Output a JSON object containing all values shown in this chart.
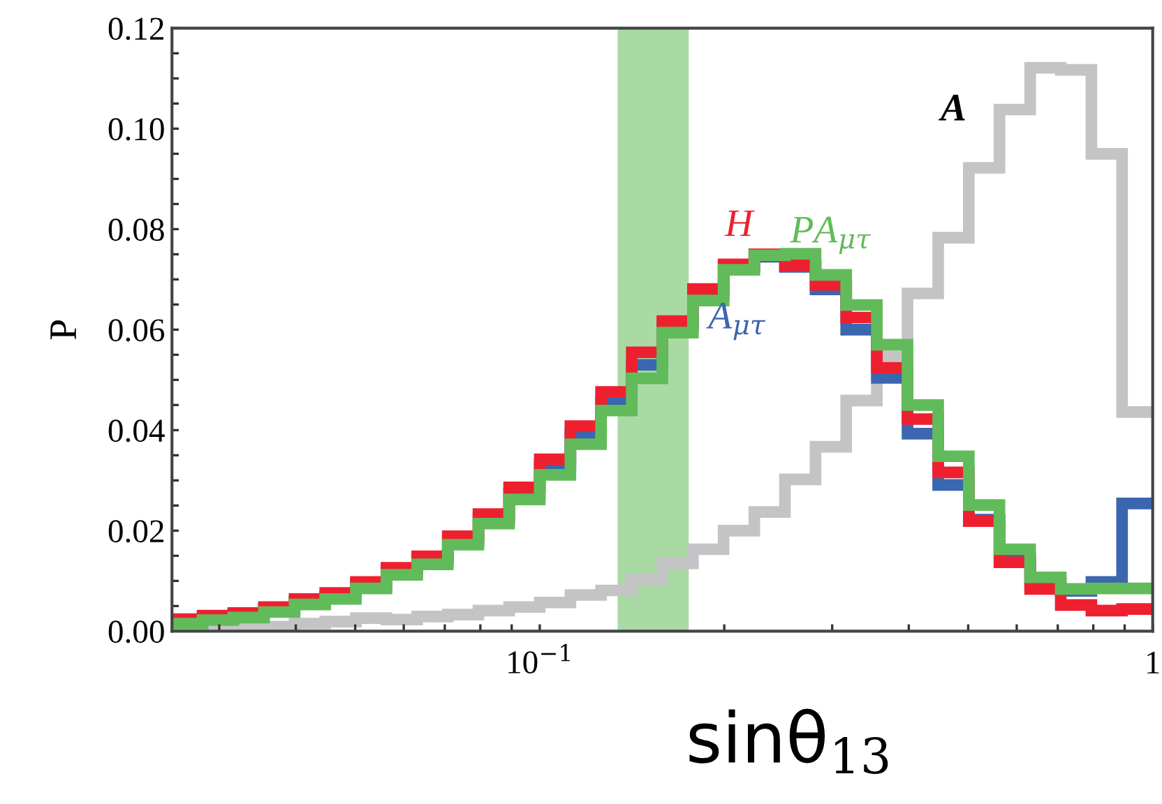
{
  "chart_data": {
    "type": "histogram",
    "xlabel": "sinθ$_{13}$",
    "ylabel": "P",
    "log": "x",
    "bins": [
      0.02512,
      0.02818,
      0.03162,
      0.03548,
      0.03981,
      0.04467,
      0.05012,
      0.05623,
      0.0631,
      0.07079,
      0.07943,
      0.08913,
      0.1,
      0.1122,
      0.1259,
      0.1413,
      0.1585,
      0.1778,
      0.1995,
      0.2239,
      0.2512,
      0.2818,
      0.3162,
      0.3548,
      0.3981,
      0.4467,
      0.5012,
      0.5623,
      0.631,
      0.7079,
      0.7943,
      0.8913,
      1
    ],
    "series": [
      {
        "name": "A",
        "color": "#c4c4c6",
        "values": [
          0.0003,
          0.0005,
          0.0007,
          0.0009,
          0.0015,
          0.0019,
          0.0026,
          0.0023,
          0.0029,
          0.0033,
          0.0041,
          0.0048,
          0.0057,
          0.0072,
          0.0081,
          0.0103,
          0.0135,
          0.0163,
          0.02,
          0.0237,
          0.0302,
          0.0367,
          0.0459,
          0.0547,
          0.0672,
          0.0783,
          0.0922,
          0.1038,
          0.1121,
          0.1117,
          0.095,
          0.0436
        ]
      },
      {
        "name": "A$_{μτ}$",
        "color": "#3b66b0",
        "values": [
          0.002,
          0.0026,
          0.0032,
          0.0043,
          0.0058,
          0.007,
          0.0092,
          0.0119,
          0.0141,
          0.0181,
          0.0224,
          0.0274,
          0.033,
          0.0392,
          0.0458,
          0.053,
          0.0606,
          0.0668,
          0.0725,
          0.0745,
          0.0725,
          0.068,
          0.06,
          0.0504,
          0.0393,
          0.0291,
          0.0222,
          0.0145,
          0.0095,
          0.008,
          0.0098,
          0.0254
        ]
      },
      {
        "name": "H",
        "color": "#ee2030",
        "values": [
          0.0024,
          0.0031,
          0.0036,
          0.0048,
          0.0064,
          0.0076,
          0.0098,
          0.0126,
          0.0149,
          0.0189,
          0.0233,
          0.0286,
          0.0342,
          0.0408,
          0.0476,
          0.0555,
          0.0617,
          0.0681,
          0.073,
          0.075,
          0.0728,
          0.0689,
          0.0624,
          0.0524,
          0.0422,
          0.0316,
          0.0219,
          0.0137,
          0.0084,
          0.0052,
          0.0041,
          0.0044
        ]
      },
      {
        "name": "PA$_{μτ}$",
        "color": "#62bb5a",
        "values": [
          0.0015,
          0.0022,
          0.0027,
          0.0038,
          0.0053,
          0.0064,
          0.0085,
          0.0112,
          0.0133,
          0.0172,
          0.0214,
          0.0262,
          0.0311,
          0.0372,
          0.0439,
          0.0503,
          0.0594,
          0.0658,
          0.0719,
          0.0748,
          0.0751,
          0.0709,
          0.0649,
          0.057,
          0.045,
          0.0348,
          0.0251,
          0.0163,
          0.0107,
          0.0084,
          0.0085,
          0.0085
        ]
      }
    ],
    "xlim": [
      0.02512,
      1
    ],
    "xticks": [
      {
        "value": 0.03,
        "label": null
      },
      {
        "value": 0.04,
        "label": null
      },
      {
        "value": 0.05,
        "label": null
      },
      {
        "value": 0.06,
        "label": null
      },
      {
        "value": 0.07,
        "label": null
      },
      {
        "value": 0.08,
        "label": null
      },
      {
        "value": 0.09,
        "label": null
      },
      {
        "value": 0.1,
        "label": "10$^{−1}$"
      },
      {
        "value": 0.2,
        "label": null
      },
      {
        "value": 0.3,
        "label": null
      },
      {
        "value": 0.4,
        "label": null
      },
      {
        "value": 0.5,
        "label": null
      },
      {
        "value": 0.6,
        "label": null
      },
      {
        "value": 0.7,
        "label": null
      },
      {
        "value": 0.8,
        "label": null
      },
      {
        "value": 0.9,
        "label": null
      },
      1
    ],
    "ylim": [
      0,
      0.12
    ],
    "yticks": [
      {
        "value": 0,
        "label": "0.00"
      },
      {
        "value": 0.005,
        "label": null
      },
      {
        "value": 0.01,
        "label": null
      },
      {
        "value": 0.015,
        "label": null
      },
      {
        "value": 0.02,
        "label": "0.02"
      },
      {
        "value": 0.025,
        "label": null
      },
      {
        "value": 0.03,
        "label": null
      },
      {
        "value": 0.035,
        "label": null
      },
      {
        "value": 0.04,
        "label": "0.04"
      },
      {
        "value": 0.045,
        "label": null
      },
      {
        "value": 0.05,
        "label": null
      },
      {
        "value": 0.055,
        "label": null
      },
      {
        "value": 0.06,
        "label": "0.06"
      },
      {
        "value": 0.065,
        "label": null
      },
      {
        "value": 0.07,
        "label": null
      },
      {
        "value": 0.075,
        "label": null
      },
      {
        "value": 0.08,
        "label": "0.08"
      },
      {
        "value": 0.085,
        "label": null
      },
      {
        "value": 0.09,
        "label": null
      },
      {
        "value": 0.095,
        "label": null
      },
      {
        "value": 0.1,
        "label": "0.10"
      },
      {
        "value": 0.105,
        "label": null
      },
      {
        "value": 0.11,
        "label": null
      },
      {
        "value": 0.115,
        "label": null
      },
      {
        "value": 0.12,
        "label": "0.12"
      }
    ],
    "bands": [
      {
        "axis": "x",
        "from": 0.134,
        "to": 0.175,
        "color": "#62bb5a"
      }
    ],
    "grid": false,
    "legend": false
  }
}
